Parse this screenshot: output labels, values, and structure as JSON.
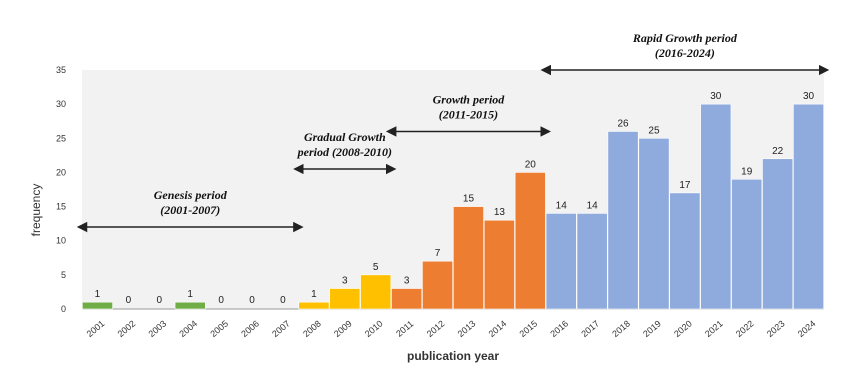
{
  "chart_data": {
    "type": "bar",
    "xlabel": "publication year",
    "ylabel": "frequency",
    "ylim": [
      0,
      35
    ],
    "yticks": [
      0,
      5,
      10,
      15,
      20,
      25,
      30,
      35
    ],
    "grid": false,
    "categories": [
      "2001",
      "2002",
      "2003",
      "2004",
      "2005",
      "2006",
      "2007",
      "2008",
      "2009",
      "2010",
      "2011",
      "2012",
      "2013",
      "2014",
      "2015",
      "2016",
      "2017",
      "2018",
      "2019",
      "2020",
      "2021",
      "2022",
      "2023",
      "2024"
    ],
    "values": [
      1,
      0,
      0,
      1,
      0,
      0,
      0,
      1,
      3,
      5,
      3,
      7,
      15,
      13,
      20,
      14,
      14,
      26,
      25,
      17,
      30,
      19,
      22,
      30
    ],
    "data_labels": [
      "1",
      "0",
      "0",
      "1",
      "0",
      "0",
      "0",
      "1",
      "3",
      "5",
      "3",
      "7",
      "15",
      "13",
      "20",
      "14",
      "14",
      "26",
      "25",
      "17",
      "30",
      "19",
      "22",
      "30"
    ],
    "colors": {
      "genesis": "#70ad47",
      "gradual": "#ffc000",
      "growth": "#ed7d31",
      "rapid": "#8faadc"
    },
    "annotations": [
      {
        "id": "genesis",
        "line1": "Genesis period",
        "line2": "(2001-2007)",
        "from": "2001",
        "to": "2007",
        "y": 12
      },
      {
        "id": "gradual",
        "line1": "Gradual Growth",
        "line2": "period (2008-2010)",
        "from": "2008",
        "to": "2010",
        "y": 20.5
      },
      {
        "id": "growth",
        "line1": "Growth period",
        "line2": "(2011-2015)",
        "from": "2011",
        "to": "2015",
        "y": 26
      },
      {
        "id": "rapid",
        "line1": "Rapid Growth period",
        "line2": "(2016-2024)",
        "from": "2016",
        "to": "2024",
        "y": 35
      }
    ]
  }
}
